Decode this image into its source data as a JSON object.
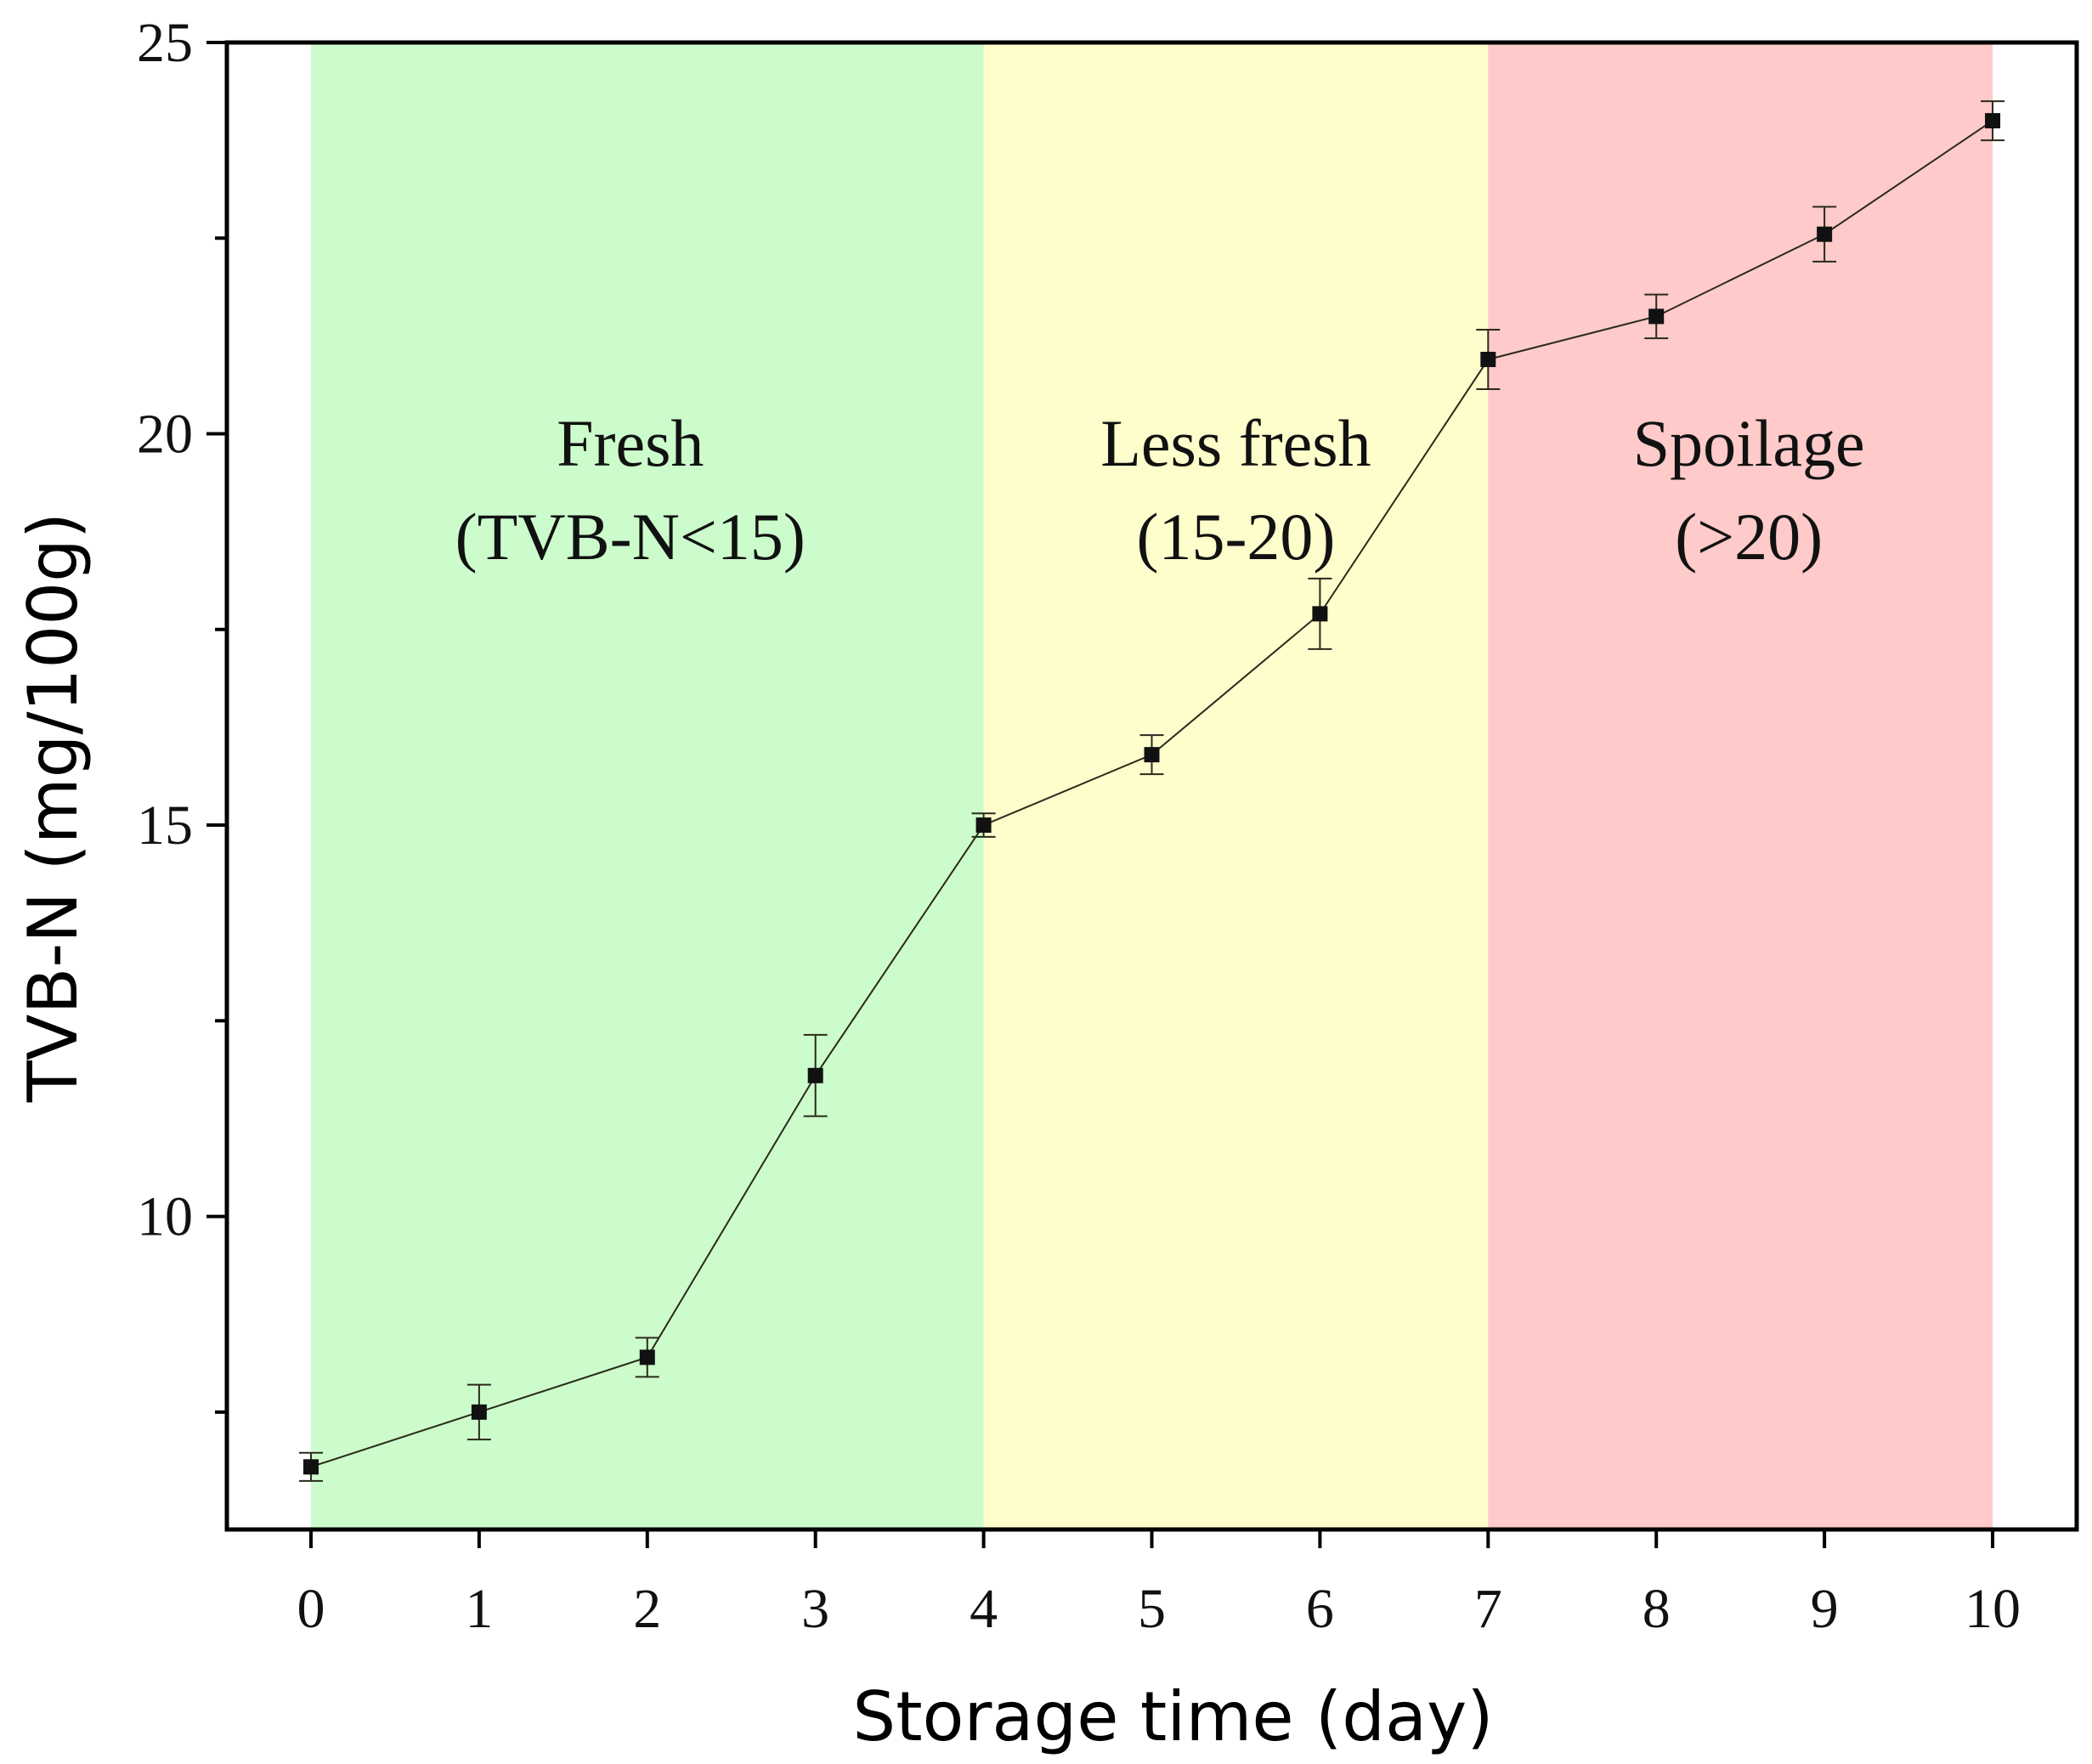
{
  "chart_data": {
    "type": "line",
    "title": "",
    "xlabel": "Storage time (day)",
    "ylabel": "TVB-N (mg/100g)",
    "xlim": [
      -0.5,
      10.5
    ],
    "ylim": [
      6,
      25
    ],
    "xticks": [
      0,
      1,
      2,
      3,
      4,
      5,
      6,
      7,
      8,
      9,
      10
    ],
    "xtick_labels": [
      "0",
      "1",
      "2",
      "3",
      "4",
      "5",
      "6",
      "7",
      "8",
      "9",
      "10"
    ],
    "yticks": [
      10,
      15,
      20,
      25
    ],
    "ytick_labels": [
      "10",
      "15",
      "20",
      "25"
    ],
    "grid": false,
    "series": [
      {
        "name": "TVB-N",
        "x": [
          0,
          1,
          2,
          3,
          4,
          5,
          6,
          7,
          8,
          9,
          10
        ],
        "values": [
          6.8,
          7.5,
          8.2,
          11.8,
          15.0,
          15.9,
          17.7,
          20.95,
          21.5,
          22.55,
          24.0
        ],
        "errors": [
          0.18,
          0.35,
          0.25,
          0.52,
          0.15,
          0.25,
          0.45,
          0.38,
          0.28,
          0.35,
          0.25
        ]
      }
    ],
    "regions": [
      {
        "label_line1": "Fresh",
        "label_line2": "(TVB-N<15)",
        "x_start": 0,
        "x_end": 4,
        "color": "#ccfccc"
      },
      {
        "label_line1": "Less fresh",
        "label_line2": "(15-20)",
        "x_start": 4,
        "x_end": 7,
        "color": "#fefdcc"
      },
      {
        "label_line1": "Spoilage",
        "label_line2": "(>20)",
        "x_start": 7,
        "x_end": 10,
        "color": "#fecaca"
      }
    ],
    "colors": {
      "axis": "#000000",
      "line": "#2a2a1a",
      "marker": "#111111"
    }
  }
}
